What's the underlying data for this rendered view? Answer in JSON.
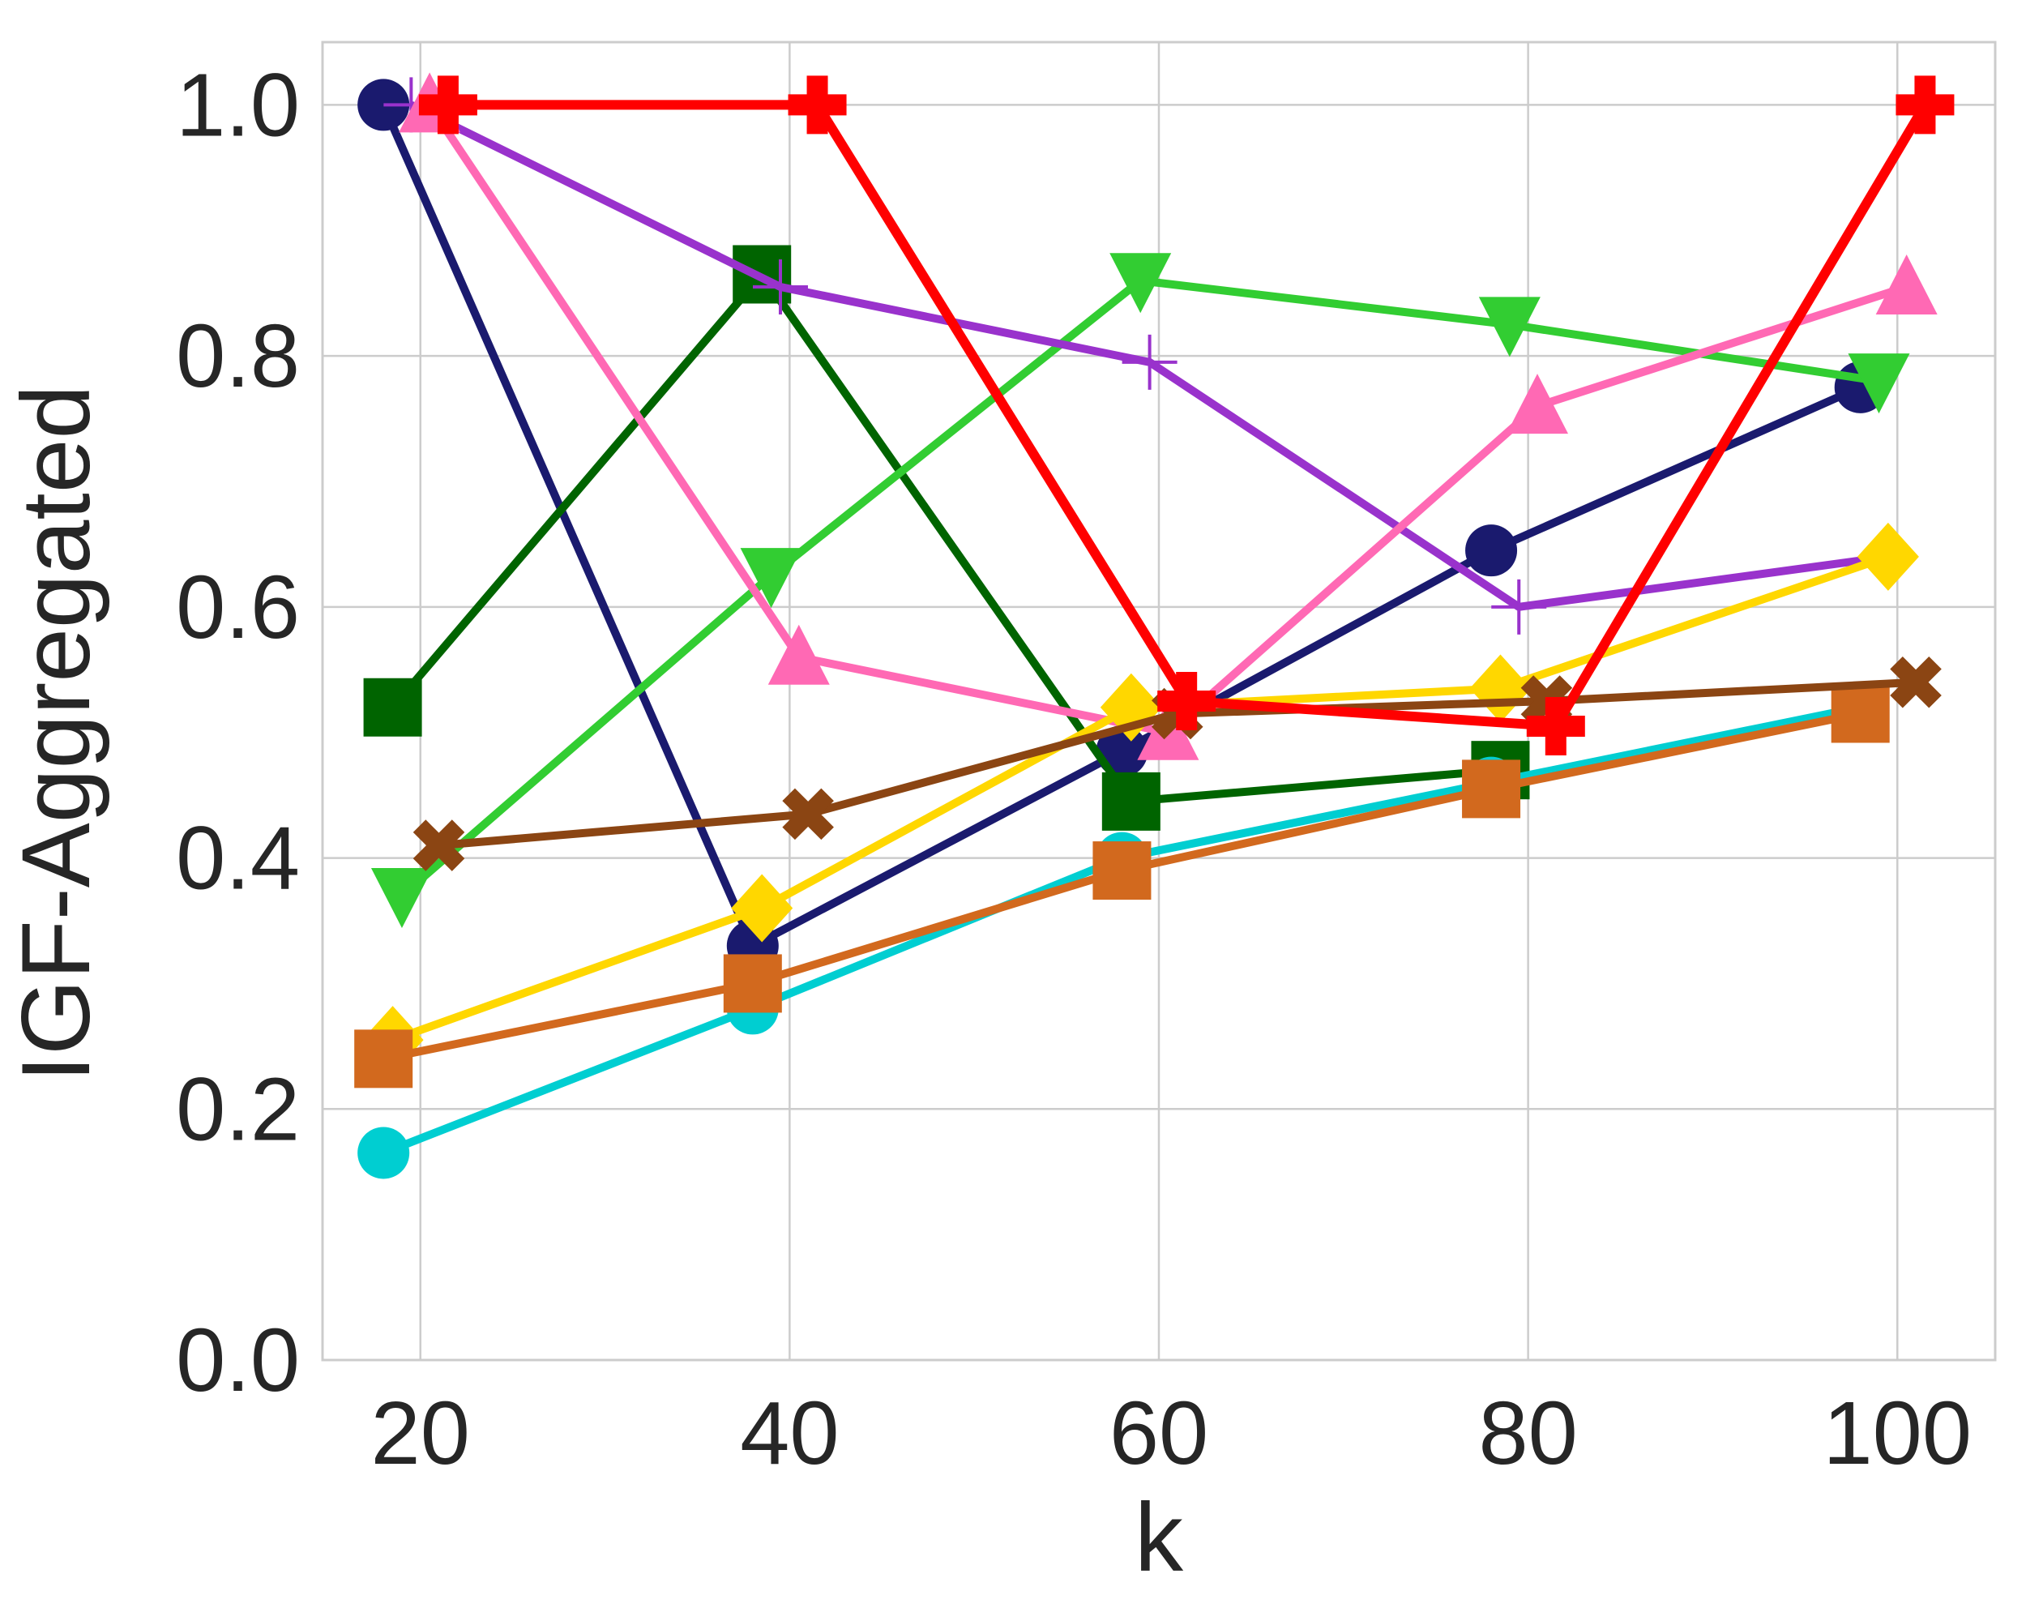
{
  "chart_data": {
    "type": "line",
    "xlabel": "k",
    "ylabel": "IGF-Aggregated",
    "xlim": [
      14.7,
      105.3
    ],
    "ylim": [
      0,
      1.05
    ],
    "xticks": [
      20,
      40,
      60,
      80,
      100
    ],
    "yticks": [
      0.0,
      0.2,
      0.4,
      0.6,
      0.8,
      1.0
    ],
    "xtick_labels": [
      "20",
      "40",
      "60",
      "80",
      "100"
    ],
    "ytick_labels": [
      "0.0",
      "0.2",
      "0.4",
      "0.6",
      "0.8",
      "1.0"
    ],
    "grid": true,
    "legend": "none",
    "series": [
      {
        "color": "#1a1a6e",
        "marker": "circle",
        "x": [
          18,
          38,
          58,
          78,
          98
        ],
        "values": [
          1.0,
          0.33,
          0.485,
          0.645,
          0.775
        ]
      },
      {
        "color": "#006400",
        "marker": "square",
        "x": [
          18.5,
          38.5,
          58.5,
          78.5
        ],
        "values": [
          0.52,
          0.865,
          0.445,
          0.47
        ]
      },
      {
        "color": "#32cd32",
        "marker": "triangle-down",
        "x": [
          19,
          39,
          59,
          79,
          99
        ],
        "values": [
          0.37,
          0.625,
          0.86,
          0.825,
          0.78
        ]
      },
      {
        "color": "#9932cc",
        "marker": "plus",
        "x": [
          19.5,
          39.5,
          59.5,
          79.5,
          99.5
        ],
        "values": [
          1.0,
          0.855,
          0.795,
          0.6,
          0.64
        ]
      },
      {
        "color": "#ff69b4",
        "marker": "triangle-up",
        "x": [
          20.5,
          40.5,
          60.5,
          80.5,
          100.5
        ],
        "values": [
          1.0,
          0.56,
          0.5,
          0.76,
          0.855
        ]
      },
      {
        "color": "#00ced1",
        "marker": "circle",
        "x": [
          18,
          38,
          58,
          78,
          98
        ],
        "values": [
          0.165,
          0.28,
          0.4,
          0.46,
          0.52
        ]
      },
      {
        "color": "#ffd700",
        "marker": "diamond",
        "x": [
          18.5,
          38.5,
          58.5,
          78.5,
          99.5
        ],
        "values": [
          0.255,
          0.36,
          0.52,
          0.535,
          0.64
        ]
      },
      {
        "color": "#d2691e",
        "marker": "square",
        "x": [
          18,
          38,
          58,
          78,
          98
        ],
        "values": [
          0.24,
          0.3,
          0.39,
          0.455,
          0.515
        ]
      },
      {
        "color": "#8b4513",
        "marker": "x",
        "x": [
          21,
          41,
          61,
          81,
          101
        ],
        "values": [
          0.41,
          0.435,
          0.515,
          0.525,
          0.54
        ]
      },
      {
        "color": "#ff0000",
        "marker": "cross",
        "x": [
          21.5,
          41.5,
          61.5,
          81.5,
          101.5
        ],
        "values": [
          1.0,
          1.0,
          0.525,
          0.505,
          1.0
        ]
      }
    ]
  }
}
